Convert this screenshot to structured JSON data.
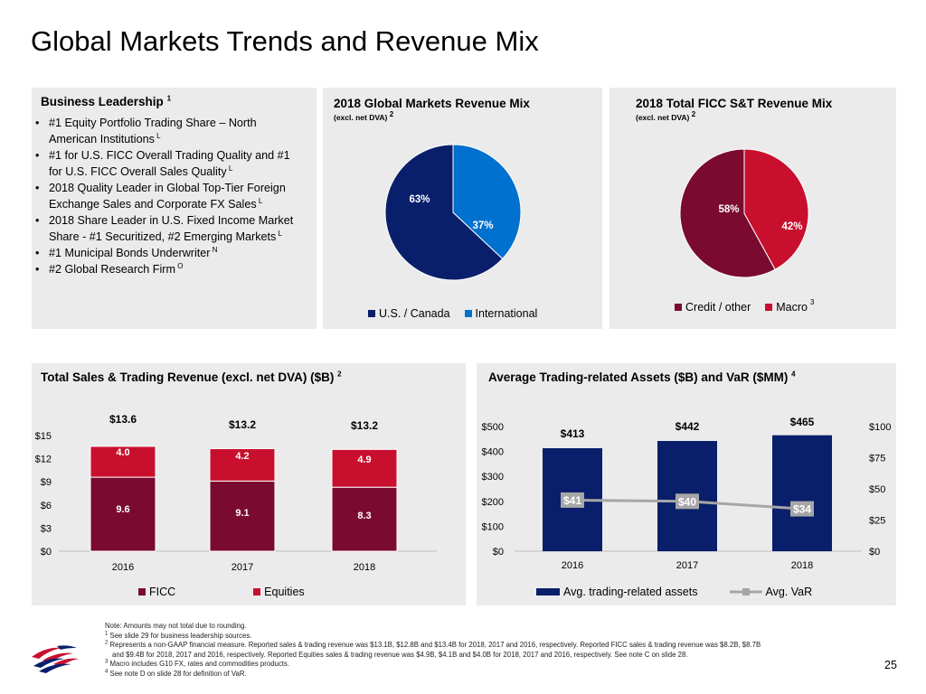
{
  "page_title": "Global Markets Trends and Revenue Mix",
  "leadership": {
    "title": "Business Leadership",
    "title_sup": "1",
    "bullets": [
      {
        "text": "#1 Equity Portfolio Trading Share – North American Institutions",
        "sup": "L"
      },
      {
        "text": "#1 for U.S. FICC Overall Trading Quality and #1 for U.S. FICC Overall Sales Quality",
        "sup": "L"
      },
      {
        "text": "2018 Quality Leader in Global Top-Tier Foreign Exchange Sales and Corporate FX Sales",
        "sup": "L"
      },
      {
        "text": "2018 Share Leader in U.S. Fixed Income Market Share - #1 Securitized, #2 Emerging Markets",
        "sup": "L"
      },
      {
        "text": "#1 Municipal Bonds Underwriter",
        "sup": "N"
      },
      {
        "text": "#2 Global Research Firm",
        "sup": "O"
      }
    ]
  },
  "colors": {
    "navy": "#0a1f6b",
    "blue": "#0071ce",
    "maroon": "#7b0a31",
    "red": "#c8102e",
    "gray_line": "#a6a6a6",
    "panel_bg": "#ebebeb"
  },
  "chart_data": [
    {
      "type": "pie",
      "title": "2018 Global Markets Revenue Mix",
      "subtitle": "(excl. net DVA)",
      "subtitle_sup": "2",
      "labels": [
        "U.S. / Canada",
        "International"
      ],
      "values": [
        63,
        37
      ],
      "value_labels": [
        "63%",
        "37%"
      ],
      "colors": [
        "#0a1f6b",
        "#0071ce"
      ],
      "legend": [
        "U.S. / Canada",
        "International"
      ]
    },
    {
      "type": "pie",
      "title": "2018 Total FICC S&T Revenue Mix",
      "subtitle": "(excl. net DVA)",
      "subtitle_sup": "2",
      "labels": [
        "Credit / other",
        "Macro"
      ],
      "values": [
        58,
        42
      ],
      "value_labels": [
        "58%",
        "42%"
      ],
      "colors": [
        "#7b0a31",
        "#c8102e"
      ],
      "legend": [
        "Credit / other",
        "Macro"
      ],
      "legend_sup": "3"
    },
    {
      "type": "bar",
      "stacked": true,
      "title": "Total Sales & Trading Revenue (excl. net DVA) ($B)",
      "title_sup": "2",
      "categories": [
        "2016",
        "2017",
        "2018"
      ],
      "series": [
        {
          "name": "FICC",
          "values": [
            9.6,
            9.1,
            8.3
          ],
          "labels": [
            "9.6",
            "9.1",
            "8.3"
          ],
          "color": "#7b0a31"
        },
        {
          "name": "Equities",
          "values": [
            4.0,
            4.2,
            4.9
          ],
          "labels": [
            "4.0",
            "4.2",
            "4.9"
          ],
          "color": "#c8102e"
        }
      ],
      "totals": [
        "$13.6",
        "$13.2",
        "$13.2"
      ],
      "ylim": [
        0,
        15
      ],
      "yticks": [
        0,
        3,
        6,
        9,
        12,
        15
      ],
      "ytick_labels": [
        "$0",
        "$3",
        "$6",
        "$9",
        "$12",
        "$15"
      ]
    },
    {
      "type": "bar",
      "title": "Average Trading-related Assets ($B) and VaR ($MM)",
      "title_sup": "4",
      "categories": [
        "2016",
        "2017",
        "2018"
      ],
      "series": [
        {
          "name": "Avg. trading-related assets",
          "type": "bar",
          "axis": "left",
          "values": [
            413,
            442,
            465
          ],
          "labels": [
            "$413",
            "$442",
            "$465"
          ],
          "color": "#0a1f6b"
        },
        {
          "name": "Avg. VaR",
          "type": "line",
          "axis": "right",
          "values": [
            41,
            40,
            34
          ],
          "labels": [
            "$41",
            "$40",
            "$34"
          ],
          "color": "#a6a6a6"
        }
      ],
      "ylim_left": [
        0,
        500
      ],
      "yticks_left": [
        0,
        100,
        200,
        300,
        400,
        500
      ],
      "ytick_labels_left": [
        "$0",
        "$100",
        "$200",
        "$300",
        "$400",
        "$500"
      ],
      "ylim_right": [
        0,
        100
      ],
      "yticks_right": [
        0,
        25,
        50,
        75,
        100
      ],
      "ytick_labels_right": [
        "$0",
        "$25",
        "$50",
        "$75",
        "$100"
      ]
    }
  ],
  "notes": [
    {
      "sup": "",
      "text": "Note: Amounts may not total due to rounding."
    },
    {
      "sup": "1",
      "text": "See slide 29 for business leadership sources."
    },
    {
      "sup": "2",
      "text": "Represents a non-GAAP financial measure. Reported sales & trading revenue was $13.1B, $12.8B and $13.4B for 2018, 2017 and 2016, respectively. Reported FICC sales & trading revenue was $8.2B, $8.7B"
    },
    {
      "sup": "",
      "text": "and $9.4B for 2018, 2017 and 2016, respectively. Reported Equities sales & trading revenue was $4.9B, $4.1B and $4.0B for 2018, 2017 and 2016, respectively. See note C on slide 28."
    },
    {
      "sup": "3",
      "text": "Macro includes G10 FX, rates and commodities products."
    },
    {
      "sup": "4",
      "text": "See note D on slide 28 for definition of VaR."
    }
  ],
  "page_number": "25",
  "logo": "bank-flag-logo"
}
